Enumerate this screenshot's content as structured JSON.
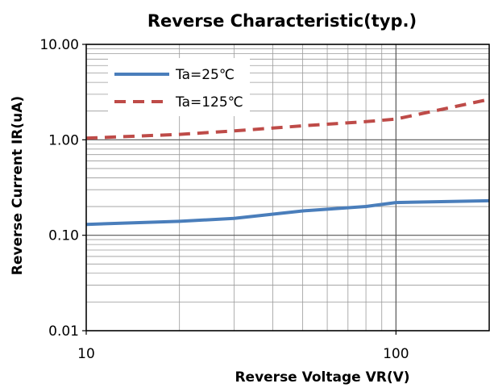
{
  "chart_data": {
    "type": "line",
    "title": "Reverse Characteristic(typ.)",
    "xlabel": "Reverse Voltage VR(V)",
    "ylabel": "Reverse Current IR(uA)",
    "x_scale": "log",
    "y_scale": "log",
    "xlim": [
      10,
      200
    ],
    "ylim": [
      0.01,
      10
    ],
    "x_ticks": [
      {
        "value": 10,
        "label": "10"
      },
      {
        "value": 100,
        "label": "100"
      }
    ],
    "y_ticks": [
      {
        "value": 10,
        "label": "10.00"
      },
      {
        "value": 1,
        "label": "1.00"
      },
      {
        "value": 0.1,
        "label": "0.10"
      },
      {
        "value": 0.01,
        "label": "0.01"
      }
    ],
    "grid": true,
    "legend_position": "top-left",
    "series": [
      {
        "name": "Ta=25℃",
        "color": "#4a7ebb",
        "style": "solid",
        "x": [
          10,
          20,
          30,
          50,
          80,
          100,
          200
        ],
        "y": [
          0.13,
          0.14,
          0.15,
          0.18,
          0.2,
          0.22,
          0.23
        ]
      },
      {
        "name": "Ta=125℃",
        "color": "#be4b48",
        "style": "dashed",
        "x": [
          10,
          20,
          30,
          50,
          80,
          100,
          200
        ],
        "y": [
          1.04,
          1.14,
          1.24,
          1.4,
          1.55,
          1.65,
          2.65
        ]
      }
    ]
  }
}
